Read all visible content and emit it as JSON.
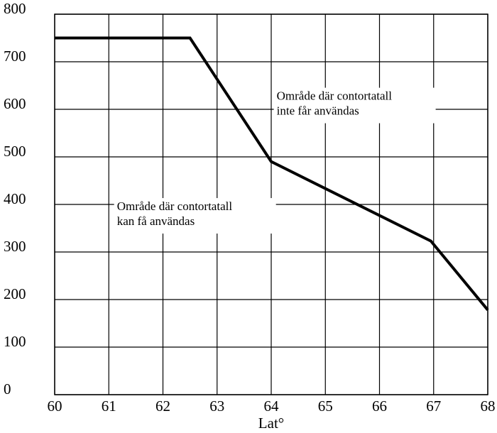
{
  "chart_data": {
    "type": "line",
    "title": "",
    "xlabel": "Lat°",
    "ylabel": "",
    "xlim": [
      60,
      68
    ],
    "ylim": [
      0,
      800
    ],
    "x_ticks": [
      "60",
      "61",
      "62",
      "63",
      "64",
      "65",
      "66",
      "67",
      "68"
    ],
    "y_ticks": [
      "0",
      "100",
      "200",
      "300",
      "400",
      "500",
      "600",
      "700",
      "800"
    ],
    "grid": true,
    "legend": "none",
    "line_color": "#000000",
    "series": [
      {
        "x": [
          60,
          62.5,
          64,
          66.95,
          68
        ],
        "y": [
          750,
          750,
          490,
          323,
          178
        ]
      }
    ],
    "annotations": [
      {
        "lines": [
          "Område där contortatall",
          "inte får användas"
        ],
        "x": 64.1,
        "y": 620
      },
      {
        "lines": [
          "Område där contortatall",
          "kan få användas"
        ],
        "x": 61.15,
        "y": 388
      }
    ]
  }
}
